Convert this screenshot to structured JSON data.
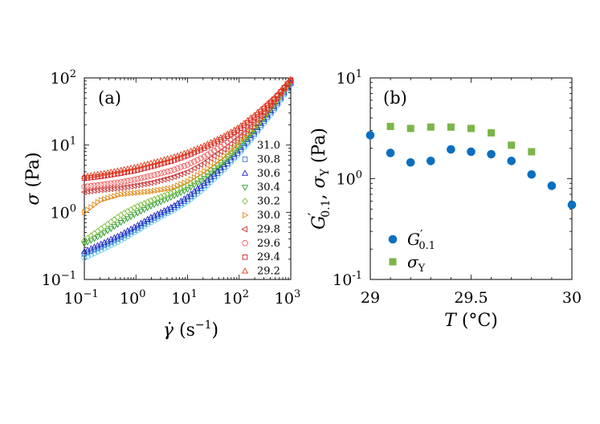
{
  "chart_data": [
    {
      "type": "scatter",
      "panel_label": "(a)",
      "xscale": "log",
      "yscale": "log",
      "xlim": [
        0.1,
        1000
      ],
      "ylim": [
        0.1,
        100
      ],
      "xlabel_main": "γ̇",
      "xlabel_unit": "(s",
      "xlabel_exp": "−1",
      "xlabel_close": ")",
      "ylabel_main": "σ",
      "ylabel_unit": "(Pa)",
      "xticks": [
        {
          "value": 0.1,
          "base": "10",
          "exp": "−1"
        },
        {
          "value": 1,
          "base": "10",
          "exp": "0"
        },
        {
          "value": 10,
          "base": "10",
          "exp": "1"
        },
        {
          "value": 100,
          "base": "10",
          "exp": "2"
        },
        {
          "value": 1000,
          "base": "10",
          "exp": "3"
        }
      ],
      "yticks": [
        {
          "value": 0.1,
          "base": "10",
          "exp": "−1"
        },
        {
          "value": 1,
          "base": "10",
          "exp": "0"
        },
        {
          "value": 10,
          "base": "10",
          "exp": "1"
        },
        {
          "value": 100,
          "base": "10",
          "exp": "2"
        }
      ],
      "legend_position": "right",
      "series": [
        {
          "name": "31.0",
          "marker": "circle",
          "color": "#5bc8f0",
          "x": [
            0.1,
            0.2,
            0.5,
            1,
            2,
            5,
            10,
            20,
            50,
            100,
            200,
            500,
            1000
          ],
          "y": [
            0.21,
            0.27,
            0.38,
            0.52,
            0.72,
            1.05,
            1.45,
            2.2,
            4.3,
            7.5,
            14,
            35,
            80
          ]
        },
        {
          "name": "30.8",
          "marker": "square",
          "color": "#2f6fd0",
          "x": [
            0.1,
            0.2,
            0.5,
            1,
            2,
            5,
            10,
            20,
            50,
            100,
            200,
            500,
            1000
          ],
          "y": [
            0.24,
            0.3,
            0.42,
            0.56,
            0.78,
            1.12,
            1.55,
            2.4,
            4.6,
            8,
            15,
            37,
            83
          ]
        },
        {
          "name": "30.6",
          "marker": "triangle-up",
          "color": "#1f1fc0",
          "x": [
            0.1,
            0.2,
            0.5,
            1,
            2,
            5,
            10,
            20,
            50,
            100,
            200,
            500,
            1000
          ],
          "y": [
            0.26,
            0.33,
            0.46,
            0.62,
            0.85,
            1.2,
            1.7,
            2.6,
            5,
            8.6,
            16,
            39,
            86
          ]
        },
        {
          "name": "30.4",
          "marker": "triangle-down",
          "color": "#2a9a2a",
          "x": [
            0.1,
            0.2,
            0.5,
            1,
            2,
            5,
            10,
            20,
            50,
            100,
            200,
            500,
            1000
          ],
          "y": [
            0.34,
            0.45,
            0.7,
            0.95,
            1.25,
            1.7,
            2.2,
            3.1,
            5.5,
            9.3,
            17,
            41,
            88
          ]
        },
        {
          "name": "30.2",
          "marker": "diamond",
          "color": "#7fbf3f",
          "x": [
            0.1,
            0.2,
            0.5,
            1,
            2,
            5,
            10,
            20,
            50,
            100,
            200,
            500,
            1000
          ],
          "y": [
            0.38,
            0.55,
            0.9,
            1.2,
            1.5,
            1.95,
            2.5,
            3.5,
            6,
            10,
            18,
            42,
            89
          ]
        },
        {
          "name": "30.0",
          "marker": "triangle-right",
          "color": "#e08a1a",
          "x": [
            0.1,
            0.2,
            0.5,
            1,
            2,
            5,
            10,
            20,
            50,
            100,
            200,
            500,
            1000
          ],
          "y": [
            1.0,
            1.5,
            1.85,
            1.95,
            2.05,
            2.3,
            2.9,
            4,
            6.8,
            11,
            19,
            44,
            90
          ]
        },
        {
          "name": "29.8",
          "marker": "triangle-left",
          "color": "#c83232",
          "x": [
            0.1,
            0.2,
            0.5,
            1,
            2,
            5,
            10,
            20,
            50,
            100,
            200,
            500,
            1000
          ],
          "y": [
            2.0,
            2.15,
            2.3,
            2.5,
            2.75,
            3.3,
            4,
            5.3,
            8.5,
            13,
            21,
            46,
            91
          ]
        },
        {
          "name": "29.6",
          "marker": "circle",
          "color": "#f05a5a",
          "x": [
            0.1,
            0.2,
            0.5,
            1,
            2,
            5,
            10,
            20,
            50,
            100,
            200,
            500,
            1000
          ],
          "y": [
            2.4,
            2.55,
            2.8,
            3.1,
            3.5,
            4.2,
            5.1,
            6.6,
            10,
            14.5,
            23,
            48,
            92
          ]
        },
        {
          "name": "29.4",
          "marker": "square",
          "color": "#d21a1a",
          "x": [
            0.1,
            0.2,
            0.5,
            1,
            2,
            5,
            10,
            20,
            50,
            100,
            200,
            500,
            1000
          ],
          "y": [
            3.2,
            3.4,
            3.8,
            4.2,
            4.8,
            5.8,
            7,
            8.8,
            12.5,
            17,
            26,
            50,
            93
          ]
        },
        {
          "name": "29.2",
          "marker": "triangle-up",
          "color": "#e03a1a",
          "x": [
            0.1,
            0.2,
            0.5,
            1,
            2,
            5,
            10,
            20,
            50,
            100,
            200,
            500,
            1000
          ],
          "y": [
            3.4,
            3.7,
            4.2,
            4.7,
            5.4,
            6.5,
            7.8,
            9.6,
            13.5,
            18.5,
            28,
            52,
            95
          ]
        }
      ]
    },
    {
      "type": "scatter",
      "panel_label": "(b)",
      "xscale": "linear",
      "yscale": "log",
      "xlim": [
        29,
        30
      ],
      "ylim": [
        0.1,
        10
      ],
      "xlabel_main": "T",
      "xlabel_unit": "(°C)",
      "ylabel_g": "G",
      "ylabel_g_sub": "0.1",
      "ylabel_sep": ", ",
      "ylabel_s": "σ",
      "ylabel_s_sub": "Y",
      "ylabel_unit": "(Pa)",
      "xticks": [
        {
          "value": 29,
          "label": "29"
        },
        {
          "value": 29.5,
          "label": "29.5"
        },
        {
          "value": 30,
          "label": "30"
        }
      ],
      "yticks": [
        {
          "value": 0.1,
          "base": "10",
          "exp": "-1"
        },
        {
          "value": 1,
          "base": "10",
          "exp": "0"
        },
        {
          "value": 10,
          "base": "10",
          "exp": "1"
        }
      ],
      "legend_position": "bottom-left",
      "series": [
        {
          "name": "G′0.1",
          "legend_main": "G",
          "legend_prime": "′",
          "legend_sub": "0.1",
          "marker": "circle",
          "color": "#0a6fbf",
          "x": [
            29.0,
            29.1,
            29.2,
            29.3,
            29.4,
            29.5,
            29.6,
            29.7,
            29.8,
            29.9,
            30.0
          ],
          "y": [
            2.7,
            1.8,
            1.45,
            1.5,
            1.95,
            1.85,
            1.75,
            1.5,
            1.1,
            0.85,
            0.55
          ]
        },
        {
          "name": "σY",
          "legend_main": "σ",
          "legend_sub": "Y",
          "marker": "square",
          "color": "#7ab648",
          "x": [
            29.1,
            29.2,
            29.3,
            29.4,
            29.5,
            29.6,
            29.7,
            29.8
          ],
          "y": [
            3.3,
            3.15,
            3.25,
            3.25,
            3.15,
            2.85,
            2.15,
            1.85
          ]
        }
      ]
    }
  ]
}
